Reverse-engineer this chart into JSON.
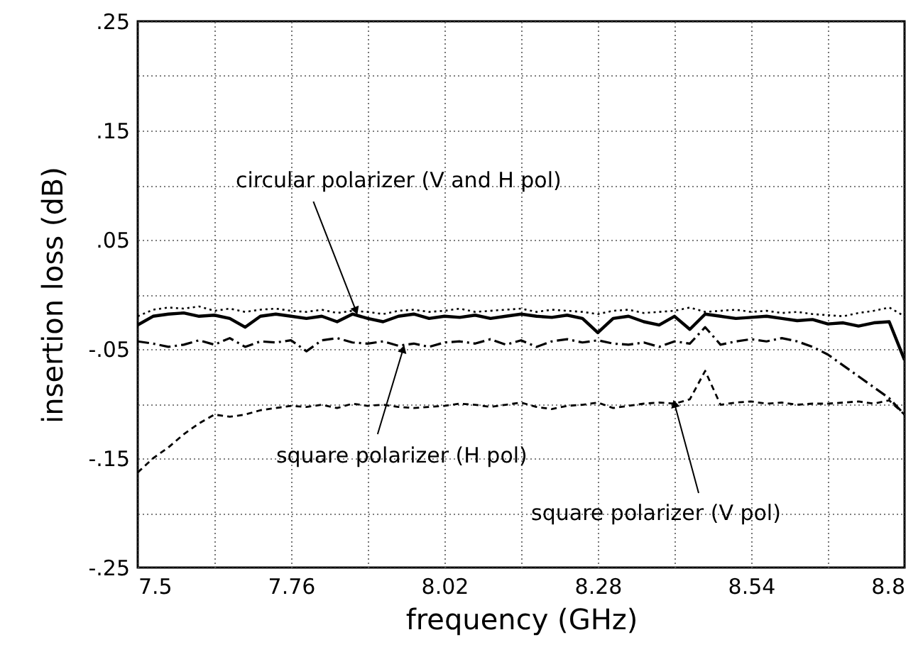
{
  "chart_data": {
    "type": "line",
    "xlabel": "frequency (GHz)",
    "ylabel": "insertion loss (dB)",
    "xlim": [
      7.5,
      8.8
    ],
    "ylim": [
      -0.25,
      0.25
    ],
    "xticks": [
      7.5,
      {
        "value": 7.63,
        "label": null
      },
      7.76,
      {
        "value": 7.89,
        "label": null
      },
      8.02,
      {
        "value": 8.15,
        "label": null
      },
      8.28,
      {
        "value": 8.41,
        "label": null
      },
      8.54,
      {
        "value": 8.67,
        "label": null
      },
      8.8
    ],
    "yticks": [
      {
        "value": -0.25,
        "label": "-.25"
      },
      {
        "value": -0.2,
        "label": null
      },
      {
        "value": -0.15,
        "label": "-.15"
      },
      {
        "value": -0.1,
        "label": null
      },
      {
        "value": -0.05,
        "label": "-.05"
      },
      {
        "value": 0,
        "label": null
      },
      {
        "value": 0.05,
        "label": ".05"
      },
      {
        "value": 0.1,
        "label": null
      },
      {
        "value": 0.15,
        "label": ".15"
      },
      {
        "value": 0.2,
        "label": null
      },
      {
        "value": 0.25,
        "label": ".25"
      }
    ],
    "grid": true,
    "x": [
      7.5,
      7.526,
      7.552,
      7.578,
      7.604,
      7.63,
      7.656,
      7.682,
      7.708,
      7.734,
      7.76,
      7.786,
      7.812,
      7.838,
      7.864,
      7.89,
      7.916,
      7.942,
      7.968,
      7.994,
      8.02,
      8.046,
      8.072,
      8.098,
      8.124,
      8.15,
      8.176,
      8.202,
      8.228,
      8.254,
      8.28,
      8.306,
      8.332,
      8.358,
      8.384,
      8.41,
      8.436,
      8.462,
      8.488,
      8.514,
      8.54,
      8.566,
      8.592,
      8.618,
      8.644,
      8.67,
      8.696,
      8.722,
      8.748,
      8.774,
      8.8
    ],
    "series": [
      {
        "color": "#000000",
        "line_style": "solid",
        "values": [
          -0.028,
          -0.02,
          -0.018,
          -0.017,
          -0.02,
          -0.019,
          -0.022,
          -0.03,
          -0.02,
          -0.018,
          -0.02,
          -0.022,
          -0.02,
          -0.025,
          -0.018,
          -0.022,
          -0.025,
          -0.02,
          -0.018,
          -0.022,
          -0.02,
          -0.021,
          -0.019,
          -0.022,
          -0.02,
          -0.018,
          -0.02,
          -0.021,
          -0.019,
          -0.022,
          -0.035,
          -0.022,
          -0.02,
          -0.025,
          -0.028,
          -0.02,
          -0.032,
          -0.018,
          -0.02,
          -0.022,
          -0.021,
          -0.02,
          -0.022,
          -0.024,
          -0.023,
          -0.027,
          -0.026,
          -0.029,
          -0.026,
          -0.025,
          -0.06
        ]
      },
      {
        "color": "#000000",
        "line_style": "dotted",
        "values": [
          -0.02,
          -0.014,
          -0.012,
          -0.013,
          -0.011,
          -0.015,
          -0.013,
          -0.016,
          -0.014,
          -0.013,
          -0.015,
          -0.016,
          -0.014,
          -0.017,
          -0.015,
          -0.016,
          -0.018,
          -0.015,
          -0.014,
          -0.016,
          -0.015,
          -0.013,
          -0.016,
          -0.015,
          -0.014,
          -0.013,
          -0.016,
          -0.014,
          -0.015,
          -0.016,
          -0.018,
          -0.015,
          -0.014,
          -0.017,
          -0.016,
          -0.015,
          -0.012,
          -0.016,
          -0.015,
          -0.014,
          -0.016,
          -0.015,
          -0.017,
          -0.016,
          -0.018,
          -0.019,
          -0.02,
          -0.017,
          -0.015,
          -0.012,
          -0.02
        ]
      },
      {
        "color": "#000000",
        "line_style": "dashdot",
        "values": [
          -0.043,
          -0.045,
          -0.048,
          -0.046,
          -0.042,
          -0.046,
          -0.04,
          -0.048,
          -0.043,
          -0.044,
          -0.042,
          -0.052,
          -0.042,
          -0.04,
          -0.044,
          -0.045,
          -0.043,
          -0.047,
          -0.045,
          -0.048,
          -0.044,
          -0.043,
          -0.045,
          -0.041,
          -0.046,
          -0.042,
          -0.048,
          -0.043,
          -0.041,
          -0.044,
          -0.042,
          -0.045,
          -0.046,
          -0.044,
          -0.048,
          -0.043,
          -0.045,
          -0.03,
          -0.046,
          -0.043,
          -0.041,
          -0.043,
          -0.04,
          -0.043,
          -0.048,
          -0.055,
          -0.065,
          -0.075,
          -0.085,
          -0.095,
          -0.11
        ]
      },
      {
        "color": "#000000",
        "line_style": "dashed",
        "values": [
          -0.163,
          -0.15,
          -0.14,
          -0.128,
          -0.118,
          -0.11,
          -0.112,
          -0.11,
          -0.106,
          -0.104,
          -0.102,
          -0.103,
          -0.101,
          -0.104,
          -0.1,
          -0.102,
          -0.101,
          -0.103,
          -0.104,
          -0.103,
          -0.102,
          -0.1,
          -0.101,
          -0.103,
          -0.101,
          -0.099,
          -0.103,
          -0.105,
          -0.102,
          -0.101,
          -0.099,
          -0.104,
          -0.102,
          -0.1,
          -0.099,
          -0.1,
          -0.096,
          -0.07,
          -0.101,
          -0.099,
          -0.098,
          -0.1,
          -0.099,
          -0.101,
          -0.1,
          -0.1,
          -0.099,
          -0.098,
          -0.1,
          -0.097,
          -0.11
        ]
      }
    ],
    "annotations": [
      {
        "text": "circular polarizer (V and H pol)",
        "x": 7.87,
        "y": -0.015
      },
      {
        "text": "square polarizer (H pol)",
        "x": 7.95,
        "y": -0.05
      },
      {
        "text": "square polarizer (V pol)",
        "x": 8.41,
        "y": -0.1
      }
    ]
  }
}
